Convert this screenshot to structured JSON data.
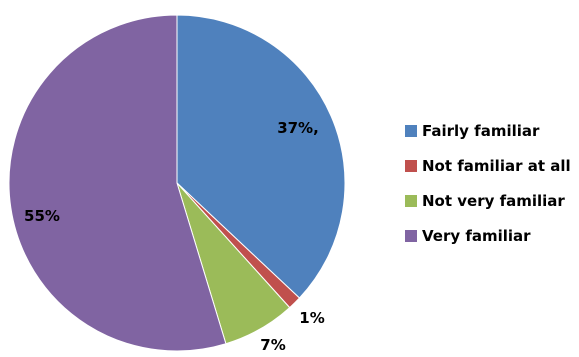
{
  "chart_data": {
    "type": "pie",
    "title": "",
    "slices": [
      {
        "name": "Fairly familiar",
        "value": 37,
        "label": "37%,",
        "color": "#4F81BD"
      },
      {
        "name": "Not familiar at all",
        "value": 1.3,
        "label": "1%",
        "color": "#C0504D"
      },
      {
        "name": "Not very familiar",
        "value": 7,
        "label": "7%",
        "color": "#9BBB59"
      },
      {
        "name": "Very familiar",
        "value": 54.7,
        "label": "55%",
        "color": "#8064A2"
      }
    ],
    "legend": {
      "position": "right"
    },
    "start_angle_deg": 0,
    "direction": "clockwise",
    "slice_border": "#ffffff"
  }
}
